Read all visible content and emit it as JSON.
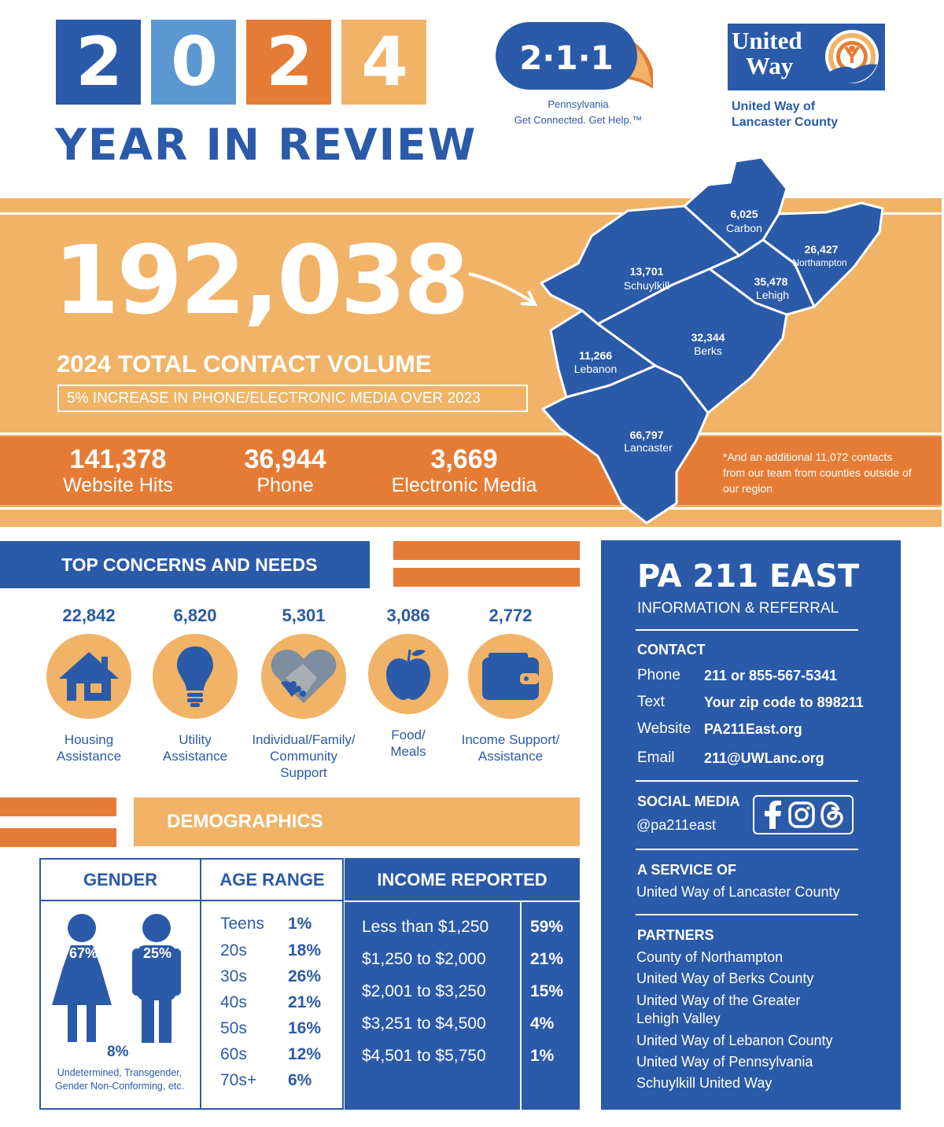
{
  "header": {
    "year_digits": [
      "2",
      "0",
      "2",
      "4"
    ],
    "title": "YEAR IN REVIEW",
    "logo211": {
      "text": "2·1·1",
      "line1": "Pennsylvania",
      "line2": "Get Connected. Get Help.™"
    },
    "united_way": {
      "line1": "United",
      "line2": "Way",
      "sub1": "United Way of",
      "sub2": "Lancaster County"
    }
  },
  "summary": {
    "total": "192,038",
    "total_label": "2024 TOTAL CONTACT VOLUME",
    "increase": "5% INCREASE IN PHONE/ELECTRONIC MEDIA OVER 2023",
    "stats": [
      {
        "value": "141,378",
        "label": "Website Hits"
      },
      {
        "value": "36,944",
        "label": "Phone"
      },
      {
        "value": "3,669",
        "label": "Electronic Media"
      }
    ],
    "note": "*And an additional 11,072 contacts from our team from counties outside of our region"
  },
  "map": {
    "counties": [
      {
        "value": "6,025",
        "name": "Carbon"
      },
      {
        "value": "26,427",
        "name": "Northampton"
      },
      {
        "value": "13,701",
        "name": "Schuylkill"
      },
      {
        "value": "35,478",
        "name": "Lehigh"
      },
      {
        "value": "32,344",
        "name": "Berks"
      },
      {
        "value": "11,266",
        "name": "Lebanon"
      },
      {
        "value": "66,797",
        "name": "Lancaster"
      }
    ]
  },
  "concerns": {
    "title": "TOP CONCERNS AND NEEDS",
    "items": [
      {
        "value": "22,842",
        "label": "Housing Assistance",
        "icon": "house-icon"
      },
      {
        "value": "6,820",
        "label": "Utility Assistance",
        "icon": "lightbulb-icon"
      },
      {
        "value": "5,301",
        "label": "Individual/Family/ Community Support",
        "icon": "handshake-heart-icon"
      },
      {
        "value": "3,086",
        "label": "Food/ Meals",
        "icon": "apple-icon"
      },
      {
        "value": "2,772",
        "label": "Income Support/ Assistance",
        "icon": "wallet-icon"
      }
    ]
  },
  "demographics": {
    "title": "DEMOGRAPHICS",
    "gender": {
      "title": "GENDER",
      "female": "67%",
      "male": "25%",
      "other": "8%",
      "other_label": "Undetermined, Transgender, Gender Non-Conforming, etc."
    },
    "age": {
      "title": "AGE RANGE",
      "rows": [
        {
          "label": "Teens",
          "pct": "1%"
        },
        {
          "label": "20s",
          "pct": "18%"
        },
        {
          "label": "30s",
          "pct": "26%"
        },
        {
          "label": "40s",
          "pct": "21%"
        },
        {
          "label": "50s",
          "pct": "16%"
        },
        {
          "label": "60s",
          "pct": "12%"
        },
        {
          "label": "70s+",
          "pct": "6%"
        }
      ]
    },
    "income": {
      "title": "INCOME REPORTED",
      "rows": [
        {
          "label": "Less than $1,250",
          "pct": "59%"
        },
        {
          "label": "$1,250 to $2,000",
          "pct": "21%"
        },
        {
          "label": "$2,001 to $3,250",
          "pct": "15%"
        },
        {
          "label": "$3,251 to $4,500",
          "pct": "4%"
        },
        {
          "label": "$4,501 to $5,750",
          "pct": "1%"
        }
      ]
    }
  },
  "panel": {
    "title": "PA 211 EAST",
    "subtitle": "INFORMATION & REFERRAL",
    "contact_heading": "CONTACT",
    "contact": [
      {
        "label": "Phone",
        "value": "211 or 855-567-5341"
      },
      {
        "label": "Text",
        "value": "Your zip code to 898211"
      },
      {
        "label": "Website",
        "value": "PA211East.org"
      },
      {
        "label": "Email",
        "value": "211@UWLanc.org"
      }
    ],
    "social_heading": "SOCIAL MEDIA",
    "social_handle": "@pa211east",
    "service_heading": "A SERVICE OF",
    "service": "United Way of Lancaster County",
    "partners_heading": "PARTNERS",
    "partners": [
      "County of Northampton",
      "United Way of Berks County",
      "United Way of the Greater",
      "Lehigh Valley",
      "United Way of Lebanon County",
      "United Way of Pennsylvania",
      "Schuylkill United Way"
    ]
  },
  "colors": {
    "blue": "#2a5aa8",
    "light_blue": "#5b98d2",
    "orange": "#e57c35",
    "light_orange": "#f0b367"
  }
}
